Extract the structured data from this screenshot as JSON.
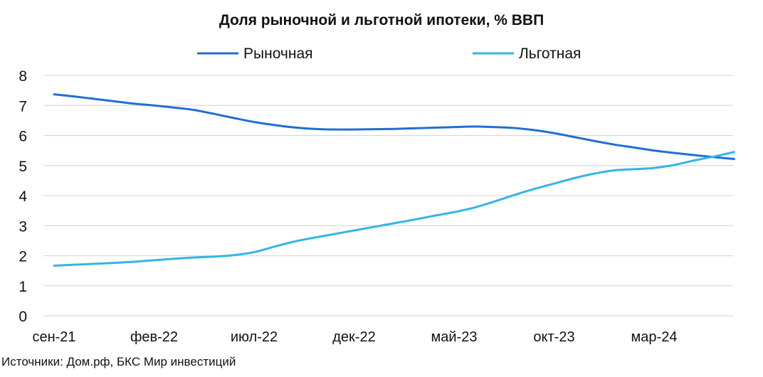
{
  "chart_data": {
    "type": "line",
    "title": "Доля рыночной и льготной ипотеки, % ВВП",
    "xlabel": "",
    "ylabel": "",
    "ylim": [
      0,
      8
    ],
    "yticks": [
      "0",
      "1",
      "2",
      "3",
      "4",
      "5",
      "6",
      "7",
      "8"
    ],
    "xticks": [
      "сен-21",
      "фев-22",
      "июл-22",
      "дек-22",
      "май-23",
      "окт-23",
      "мар-24"
    ],
    "grid": true,
    "legend": "top-center",
    "x": [
      "сен-21",
      "окт-21",
      "ноя-21",
      "дек-21",
      "янв-22",
      "фев-22",
      "мар-22",
      "апр-22",
      "май-22",
      "июн-22",
      "июл-22",
      "авг-22",
      "сен-22",
      "окт-22",
      "ноя-22",
      "дек-22",
      "янв-23",
      "фев-23",
      "мар-23",
      "апр-23",
      "май-23",
      "июн-23",
      "июл-23",
      "авг-23",
      "сен-23",
      "окт-23",
      "ноя-23",
      "дек-23",
      "янв-24",
      "фев-24",
      "мар-24",
      "апр-24",
      "май-24",
      "июн-24",
      "июл-24"
    ],
    "series": [
      {
        "name": "Рыночная",
        "color": "#1F6FD1",
        "values": [
          7.37,
          7.3,
          7.22,
          7.14,
          7.06,
          7.0,
          6.93,
          6.85,
          6.72,
          6.58,
          6.45,
          6.35,
          6.27,
          6.22,
          6.2,
          6.2,
          6.21,
          6.22,
          6.24,
          6.26,
          6.28,
          6.3,
          6.28,
          6.25,
          6.18,
          6.08,
          5.95,
          5.82,
          5.7,
          5.6,
          5.5,
          5.42,
          5.35,
          5.28,
          5.22
        ]
      },
      {
        "name": "Льготная",
        "color": "#33B5E5",
        "values": [
          1.67,
          1.7,
          1.73,
          1.76,
          1.8,
          1.85,
          1.9,
          1.94,
          1.97,
          2.02,
          2.12,
          2.3,
          2.47,
          2.6,
          2.72,
          2.84,
          2.96,
          3.08,
          3.2,
          3.33,
          3.45,
          3.6,
          3.8,
          4.02,
          4.22,
          4.4,
          4.58,
          4.73,
          4.84,
          4.88,
          4.92,
          5.02,
          5.17,
          5.3,
          5.45
        ]
      }
    ],
    "source_note": "Источники: Дом.рф, БКС Мир инвестиций"
  }
}
